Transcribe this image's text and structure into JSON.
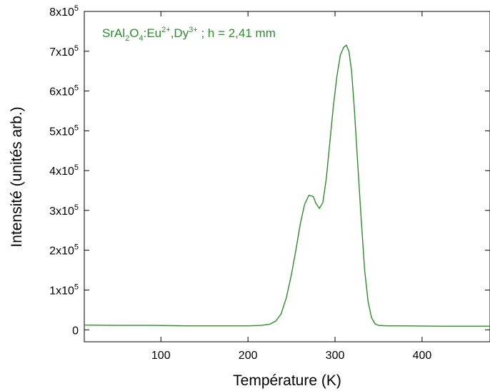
{
  "chart_data": {
    "type": "line",
    "xlabel": "Température (K)",
    "ylabel": "Intensité (unités arb.)",
    "xlim": [
      12,
      478
    ],
    "ylim": [
      -30000,
      800000
    ],
    "x_ticks": [
      100,
      200,
      300,
      400
    ],
    "x_tick_labels": [
      "100",
      "200",
      "300",
      "400"
    ],
    "y_ticks": [
      {
        "value": 0,
        "mantissa": "0",
        "base": "",
        "exp": ""
      },
      {
        "value": 100000,
        "mantissa": "1",
        "base": "x10",
        "exp": "5"
      },
      {
        "value": 200000,
        "mantissa": "2",
        "base": "x10",
        "exp": "5"
      },
      {
        "value": 300000,
        "mantissa": "3",
        "base": "x10",
        "exp": "5"
      },
      {
        "value": 400000,
        "mantissa": "4",
        "base": "x10",
        "exp": "5"
      },
      {
        "value": 500000,
        "mantissa": "5",
        "base": "x10",
        "exp": "5"
      },
      {
        "value": 600000,
        "mantissa": "6",
        "base": "x10",
        "exp": "5"
      },
      {
        "value": 700000,
        "mantissa": "7",
        "base": "x10",
        "exp": "5"
      },
      {
        "value": 800000,
        "mantissa": "8",
        "base": "x10",
        "exp": "5"
      }
    ],
    "grid": false,
    "line_color": "#2e8b2e",
    "annotation": {
      "p1": "SrAl",
      "s1": "2",
      "p2": "O",
      "s2": "4",
      "p3": ":Eu",
      "u1": "2+",
      "p4": ",Dy",
      "u2": "3+",
      "p5": " ; h = 2,41 mm"
    },
    "series": [
      {
        "x": [
          12,
          50,
          90,
          130,
          170,
          200,
          215,
          225,
          232,
          238,
          244,
          250,
          255,
          260,
          265,
          270,
          275,
          278,
          282,
          286,
          290,
          294,
          298,
          302,
          306,
          310,
          313,
          316,
          319,
          322,
          326,
          330,
          334,
          338,
          342,
          346,
          350,
          360,
          380,
          420,
          478
        ],
        "y": [
          12000,
          11000,
          11000,
          10000,
          10000,
          10000,
          11000,
          14000,
          22000,
          40000,
          80000,
          140000,
          200000,
          265000,
          315000,
          338000,
          335000,
          318000,
          305000,
          320000,
          380000,
          470000,
          560000,
          635000,
          690000,
          710000,
          715000,
          700000,
          650000,
          560000,
          420000,
          280000,
          150000,
          70000,
          30000,
          15000,
          11000,
          10000,
          10000,
          9000,
          9000
        ]
      }
    ]
  }
}
